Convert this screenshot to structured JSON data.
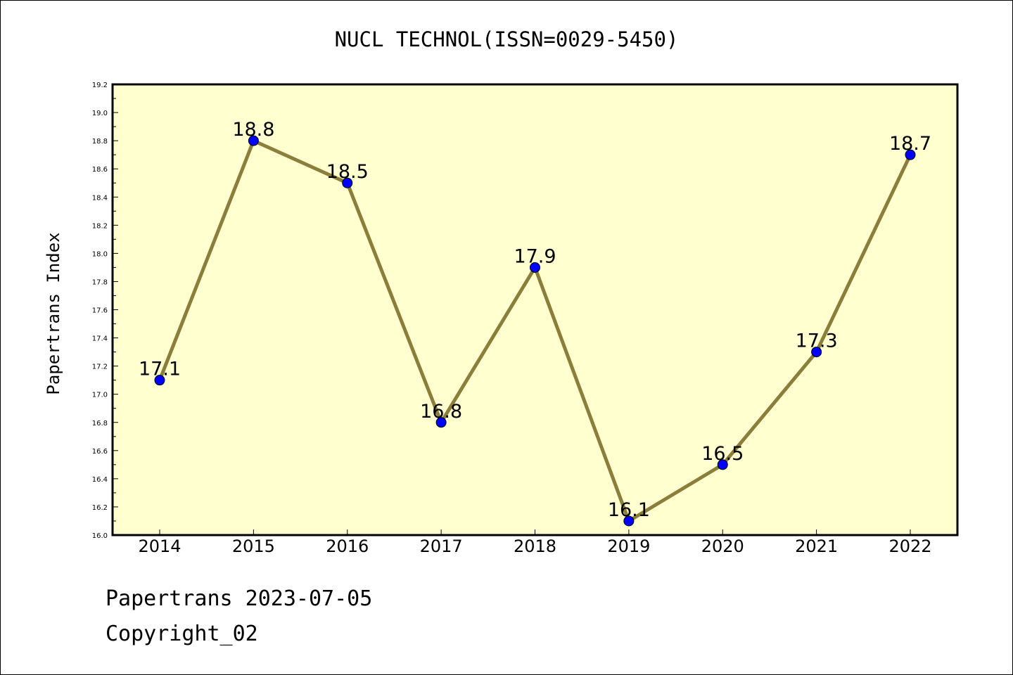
{
  "chart_data": {
    "type": "line",
    "title": "NUCL TECHNOL(ISSN=0029-5450)",
    "xlabel": "",
    "ylabel": "Papertrans Index",
    "categories": [
      "2014",
      "2015",
      "2016",
      "2017",
      "2018",
      "2019",
      "2020",
      "2021",
      "2022"
    ],
    "series": [
      {
        "values": [
          17.1,
          18.8,
          18.5,
          16.8,
          17.9,
          16.1,
          16.5,
          17.3,
          18.7
        ]
      }
    ],
    "data_labels": [
      "17.1",
      "18.8",
      "18.5",
      "16.8",
      "17.9",
      "16.1",
      "16.5",
      "17.3",
      "18.7"
    ],
    "ylim": [
      16.0,
      19.2
    ],
    "yticks": [
      "16.0",
      "16.2",
      "16.4",
      "16.6",
      "16.8",
      "17.0",
      "17.2",
      "17.4",
      "17.6",
      "17.8",
      "18.0",
      "18.2",
      "18.4",
      "18.6",
      "18.8",
      "19.0",
      "19.2"
    ],
    "grid": false,
    "legend": "none",
    "colors": {
      "plot_background": "#ffffd0",
      "line": "#8b7d3a",
      "marker": "#0000ff"
    }
  },
  "footer": {
    "date_text": "Papertrans 2023-07-05",
    "copyright_text": "Copyright_02"
  }
}
